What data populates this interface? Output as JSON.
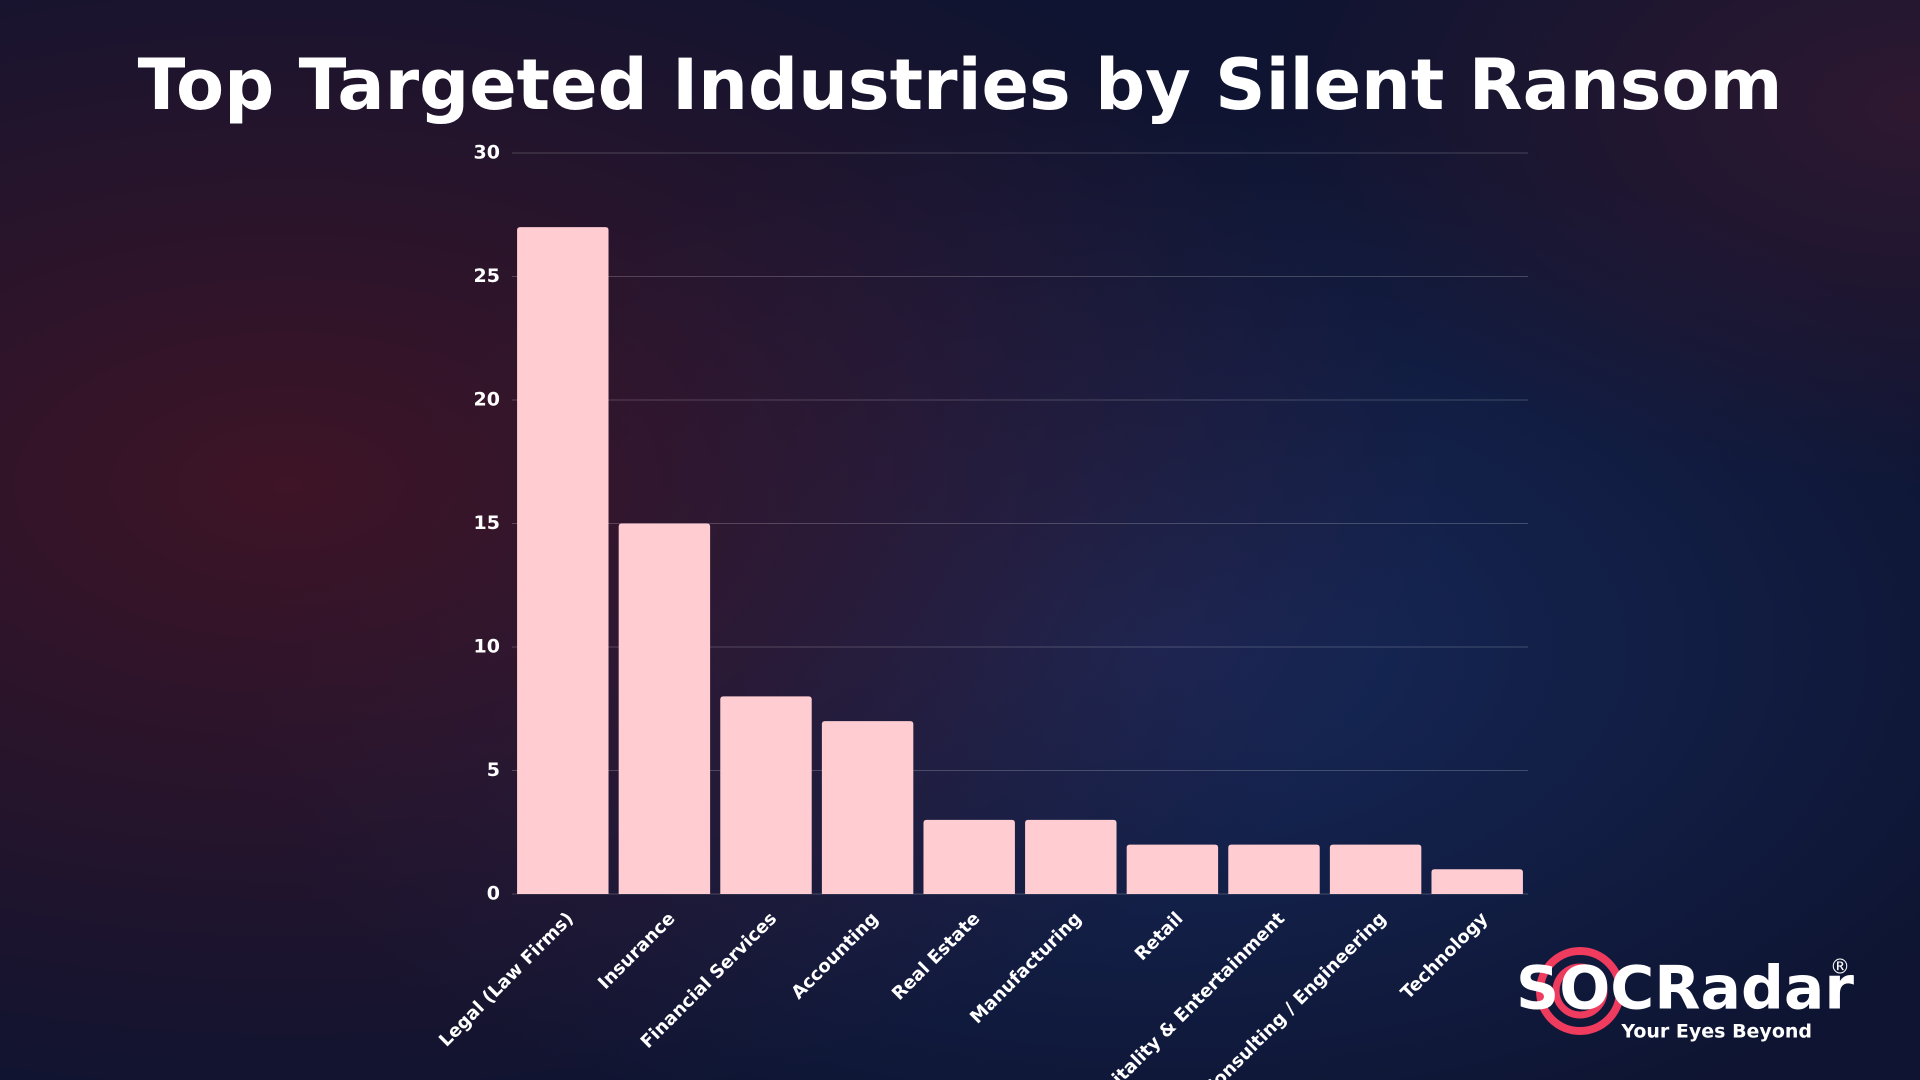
{
  "chart_data": {
    "type": "bar",
    "title": "Top Targeted Industries by Silent Ransom",
    "categories": [
      "Legal (Law Firms)",
      "Insurance",
      "Financial Services",
      "Accounting",
      "Real Estate",
      "Manufacturing",
      "Retail",
      "Hospitality & Entertainment",
      "Consulting / Engineering",
      "Technology"
    ],
    "values": [
      27,
      15,
      8,
      7,
      3,
      3,
      2,
      2,
      2,
      1
    ],
    "color": "#ffccd2",
    "ylim": [
      0,
      30
    ],
    "yticks": [
      0,
      5,
      10,
      15,
      20,
      25,
      30
    ],
    "grid": true
  },
  "logo": {
    "name": "SOCRadar",
    "mark": "®",
    "tagline": "Your Eyes Beyond"
  }
}
